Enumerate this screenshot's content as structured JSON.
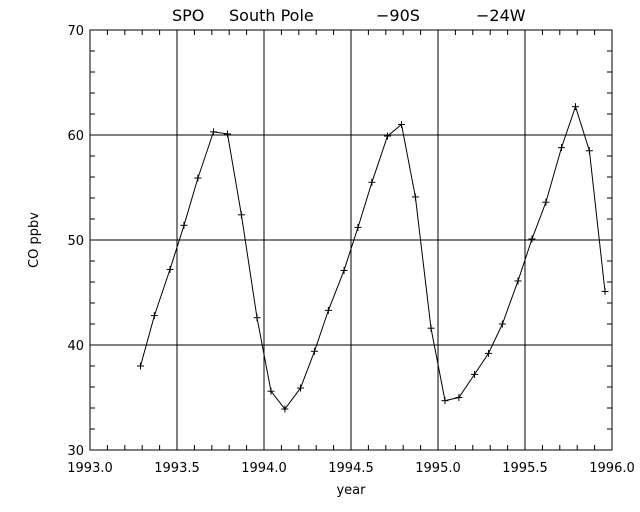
{
  "chart_data": {
    "type": "line",
    "title_parts": [
      "SPO",
      "South Pole",
      "−90S",
      "−24W"
    ],
    "xlabel": "year",
    "ylabel": "CO ppbv",
    "xlim": [
      1993.0,
      1996.0
    ],
    "ylim": [
      30,
      70
    ],
    "x_ticks": [
      1993.0,
      1993.5,
      1994.0,
      1994.5,
      1995.0,
      1995.5,
      1996.0
    ],
    "x_tick_labels": [
      "1993.0",
      "1993.5",
      "1994.0",
      "1994.5",
      "1995.0",
      "1995.5",
      "1996.0"
    ],
    "y_ticks": [
      30,
      40,
      50,
      60,
      70
    ],
    "y_tick_labels": [
      "30",
      "40",
      "50",
      "60",
      "70"
    ],
    "grid": true,
    "marker": "plus",
    "series": [
      {
        "x": [
          1993.29,
          1993.37,
          1993.46,
          1993.54,
          1993.62,
          1993.71,
          1993.79,
          1993.87,
          1993.96,
          1994.04,
          1994.12,
          1994.21,
          1994.29,
          1994.37,
          1994.46,
          1994.54,
          1994.62,
          1994.71,
          1994.79,
          1994.87,
          1994.96,
          1995.04,
          1995.12,
          1995.21,
          1995.29,
          1995.37,
          1995.46,
          1995.54,
          1995.62,
          1995.71,
          1995.79,
          1995.87,
          1995.96
        ],
        "y": [
          38.0,
          42.8,
          47.2,
          51.4,
          55.9,
          60.3,
          60.1,
          52.4,
          42.6,
          35.6,
          33.9,
          35.9,
          39.4,
          43.3,
          47.1,
          51.2,
          55.5,
          59.9,
          61.0,
          54.1,
          41.6,
          34.7,
          35.0,
          37.2,
          39.2,
          42.0,
          46.1,
          50.1,
          53.6,
          58.8,
          62.7,
          58.5,
          45.1
        ]
      }
    ]
  }
}
